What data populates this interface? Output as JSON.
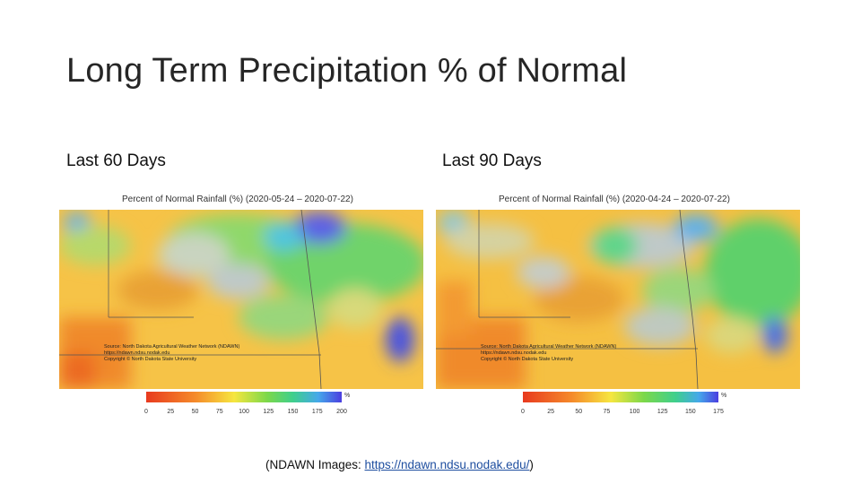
{
  "slide": {
    "title": "Long Term Precipitation % of Normal",
    "left_label": "Last 60 Days",
    "right_label": "Last 90 Days",
    "footer_prefix": "(NDAWN Images: ",
    "footer_link": "https://ndawn.ndsu.nodak.edu/",
    "footer_suffix": ")"
  },
  "maps": [
    {
      "title": "Percent of Normal Rainfall (%) (2020-05-24 – 2020-07-22)",
      "legend_unit": "%",
      "legend_ticks": [
        "0",
        "25",
        "50",
        "75",
        "100",
        "125",
        "150",
        "175",
        "200"
      ],
      "source_lines": [
        "Source: North Dakota Agricultural Weather Network (NDAWN)",
        "https://ndawn.ndsu.nodak.edu",
        "Copyright © North Dakota State University"
      ]
    },
    {
      "title": "Percent of Normal Rainfall (%) (2020-04-24 – 2020-07-22)",
      "legend_unit": "%",
      "legend_ticks": [
        "0",
        "25",
        "50",
        "75",
        "100",
        "125",
        "150",
        "175"
      ],
      "source_lines": [
        "Source: North Dakota Agricultural Weather Network (NDAWN)",
        "https://ndawn.ndsu.nodak.edu",
        "Copyright © North Dakota State University"
      ]
    }
  ]
}
